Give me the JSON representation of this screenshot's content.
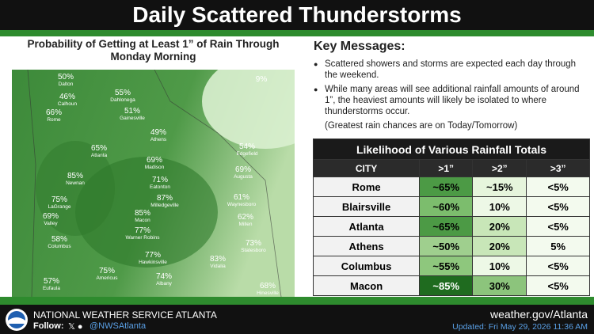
{
  "header": {
    "title": "Daily Scattered Thunderstorms"
  },
  "map": {
    "title": "Probability of Getting at Least 1” of Rain Through Monday Morning",
    "labels": [
      {
        "value": "50%",
        "place": "Dalton"
      },
      {
        "value": "46%",
        "place": "Calhoun"
      },
      {
        "value": "55%",
        "place": "Dahlonega"
      },
      {
        "value": "66%",
        "place": "Rome"
      },
      {
        "value": "51%",
        "place": "Gainesville"
      },
      {
        "value": "49%",
        "place": "Athens"
      },
      {
        "value": "54%",
        "place": "Edgefield"
      },
      {
        "value": "65%",
        "place": "Atlanta"
      },
      {
        "value": "69%",
        "place": "Madison"
      },
      {
        "value": "69%",
        "place": "Augusta"
      },
      {
        "value": "85%",
        "place": "Newnan"
      },
      {
        "value": "71%",
        "place": "Eatonton"
      },
      {
        "value": "87%",
        "place": "Milledgeville"
      },
      {
        "value": "61%",
        "place": "Waynesboro"
      },
      {
        "value": "75%",
        "place": "LaGrange"
      },
      {
        "value": "69%",
        "place": "Valley"
      },
      {
        "value": "85%",
        "place": "Macon"
      },
      {
        "value": "62%",
        "place": "Millen"
      },
      {
        "value": "77%",
        "place": "Warner Robins"
      },
      {
        "value": "58%",
        "place": "Columbus"
      },
      {
        "value": "73%",
        "place": "Statesboro"
      },
      {
        "value": "77%",
        "place": "Hawkinsville"
      },
      {
        "value": "83%",
        "place": "Vidalia"
      },
      {
        "value": "75%",
        "place": "Americus"
      },
      {
        "value": "74%",
        "place": "Albany"
      },
      {
        "value": "57%",
        "place": "Eufaula"
      },
      {
        "value": "68%",
        "place": "Hinesville"
      },
      {
        "value": "9%",
        "place": ""
      }
    ]
  },
  "key_messages": {
    "title": "Key Messages:",
    "items": [
      "Scattered showers and storms are expected each day through the weekend.",
      "While many areas will see additional rainfall amounts of around 1”, the heaviest amounts will likely be isolated to where thunderstorms occur."
    ],
    "note": "(Greatest rain chances are on Today/Tomorrow)"
  },
  "table": {
    "title": "Likelihood of Various Rainfall Totals",
    "headers": [
      "CITY",
      ">1”",
      ">2”",
      ">3”"
    ],
    "rows": [
      [
        "Rome",
        "~65%",
        "~15%",
        "<5%"
      ],
      [
        "Blairsville",
        "~60%",
        "10%",
        "<5%"
      ],
      [
        "Atlanta",
        "~65%",
        "20%",
        "<5%"
      ],
      [
        "Athens",
        "~50%",
        "20%",
        "5%"
      ],
      [
        "Columbus",
        "~55%",
        "10%",
        "<5%"
      ],
      [
        "Macon",
        "~85%",
        "30%",
        "<5%"
      ]
    ]
  },
  "footer": {
    "office": "NATIONAL WEATHER SERVICE ATLANTA",
    "follow": "Follow:",
    "handle": "@NWSAtlanta",
    "url": "weather.gov/Atlanta",
    "updated": "Updated: Fri May 29, 2026 11:36 AM"
  }
}
